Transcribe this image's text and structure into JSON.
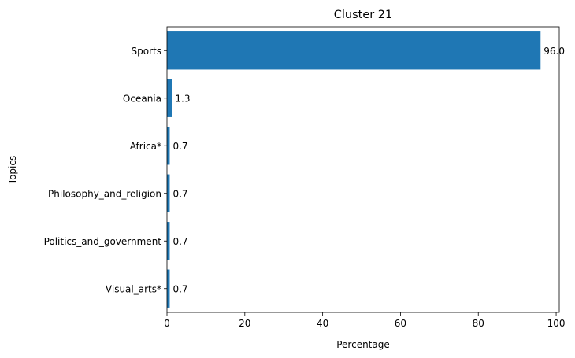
{
  "chart_data": {
    "type": "bar",
    "orientation": "horizontal",
    "title": "Cluster 21",
    "xlabel": "Percentage",
    "ylabel": "Topics",
    "categories": [
      "Sports",
      "Oceania",
      "Africa*",
      "Philosophy_and_religion",
      "Politics_and_government",
      "Visual_arts*"
    ],
    "values": [
      96.0,
      1.3,
      0.7,
      0.7,
      0.7,
      0.7
    ],
    "value_labels": [
      "96.0",
      "1.3",
      "0.7",
      "0.7",
      "0.7",
      "0.7"
    ],
    "xlim": [
      0,
      100.8
    ],
    "xticks": [
      0,
      20,
      40,
      60,
      80,
      100
    ],
    "grid": false,
    "bar_color": "#1f77b4"
  }
}
